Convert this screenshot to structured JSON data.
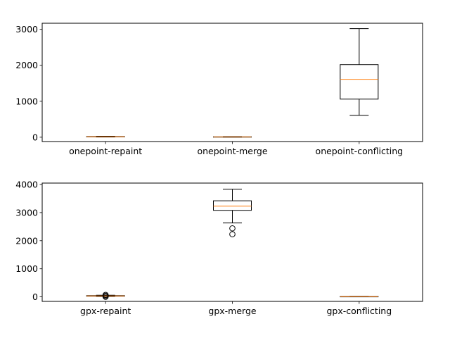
{
  "chart_data": [
    {
      "type": "boxplot",
      "ylim": [
        -120,
        3170
      ],
      "yticks": [
        0,
        1000,
        2000,
        3000
      ],
      "ytick_labels": [
        "0",
        "1000",
        "2000",
        "3000"
      ],
      "categories": [
        "onepoint-repaint",
        "onepoint-merge",
        "onepoint-conflicting"
      ],
      "boxes": [
        {
          "whisker_low": 5,
          "q1": 10,
          "median": 12,
          "q3": 18,
          "whisker_high": 28,
          "fliers": []
        },
        {
          "whisker_low": 3,
          "q1": 6,
          "median": 8,
          "q3": 12,
          "whisker_high": 18,
          "fliers": []
        },
        {
          "whisker_low": 610,
          "q1": 1060,
          "median": 1610,
          "q3": 2020,
          "whisker_high": 3020,
          "fliers": []
        }
      ]
    },
    {
      "type": "boxplot",
      "ylim": [
        -160,
        4050
      ],
      "yticks": [
        0,
        1000,
        2000,
        3000,
        4000
      ],
      "ytick_labels": [
        "0",
        "1000",
        "2000",
        "3000",
        "4000"
      ],
      "categories": [
        "gpx-repaint",
        "gpx-merge",
        "gpx-conflicting"
      ],
      "boxes": [
        {
          "whisker_low": 15,
          "q1": 25,
          "median": 35,
          "q3": 45,
          "whisker_high": 60,
          "fliers": [
            70,
            40,
            5
          ]
        },
        {
          "whisker_low": 2630,
          "q1": 3080,
          "median": 3230,
          "q3": 3420,
          "whisker_high": 3830,
          "fliers": [
            2440,
            2230
          ]
        },
        {
          "whisker_low": 5,
          "q1": 8,
          "median": 10,
          "q3": 13,
          "whisker_high": 18,
          "fliers": []
        }
      ]
    }
  ],
  "colors": {
    "box": "#000000",
    "median": "#ff7f0e",
    "background": "#ffffff"
  }
}
